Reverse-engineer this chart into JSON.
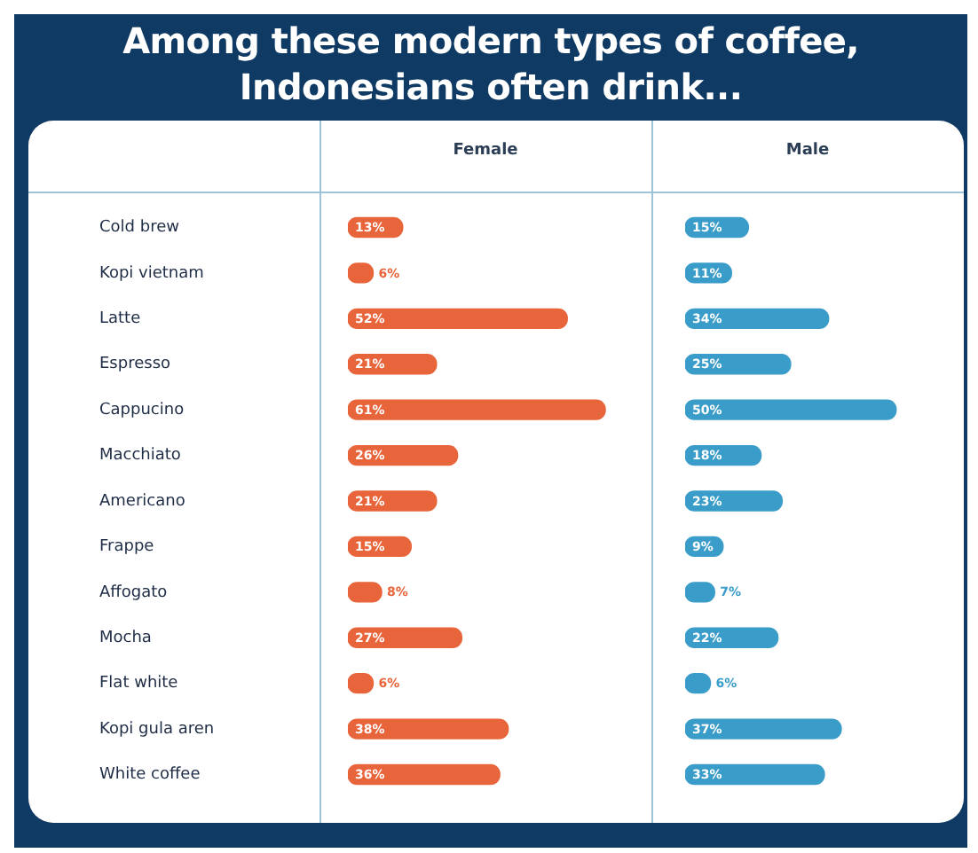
{
  "chart_data": [
    {
      "type": "bar",
      "orientation": "horizontal",
      "title": "Among these modern types of coffee, Indonesians often drink...",
      "categories": [
        "Cold brew",
        "Kopi vietnam",
        "Latte",
        "Espresso",
        "Cappucino",
        "Macchiato",
        "Americano",
        "Frappe",
        "Affogato",
        "Mocha",
        "Flat white",
        "Kopi gula aren",
        "White coffee"
      ],
      "series": [
        {
          "name": "Female",
          "color": "#e8643a",
          "values": [
            13,
            6,
            52,
            21,
            61,
            26,
            21,
            15,
            8,
            27,
            6,
            38,
            36
          ],
          "value_labels": [
            "13%",
            "6%",
            "52%",
            "21%",
            "61%",
            "26%",
            "21%",
            "15%",
            "8%",
            "27%",
            "6%",
            "38%",
            "36%"
          ]
        }
      ]
    },
    {
      "type": "bar",
      "orientation": "horizontal",
      "tick_labels": false,
      "categories": [
        null,
        null,
        null,
        null,
        null,
        null,
        null,
        null,
        null,
        null,
        null,
        null,
        null
      ],
      "series": [
        {
          "name": "Male",
          "color": "#3a9cc8",
          "values": [
            15,
            11,
            34,
            25,
            50,
            18,
            23,
            9,
            7,
            22,
            6,
            37,
            33
          ],
          "value_labels": [
            "15%",
            "11%",
            "34%",
            "25%",
            "50%",
            "18%",
            "23%",
            "9%",
            "7%",
            "22%",
            "6%",
            "37%",
            "33%"
          ]
        }
      ]
    }
  ]
}
